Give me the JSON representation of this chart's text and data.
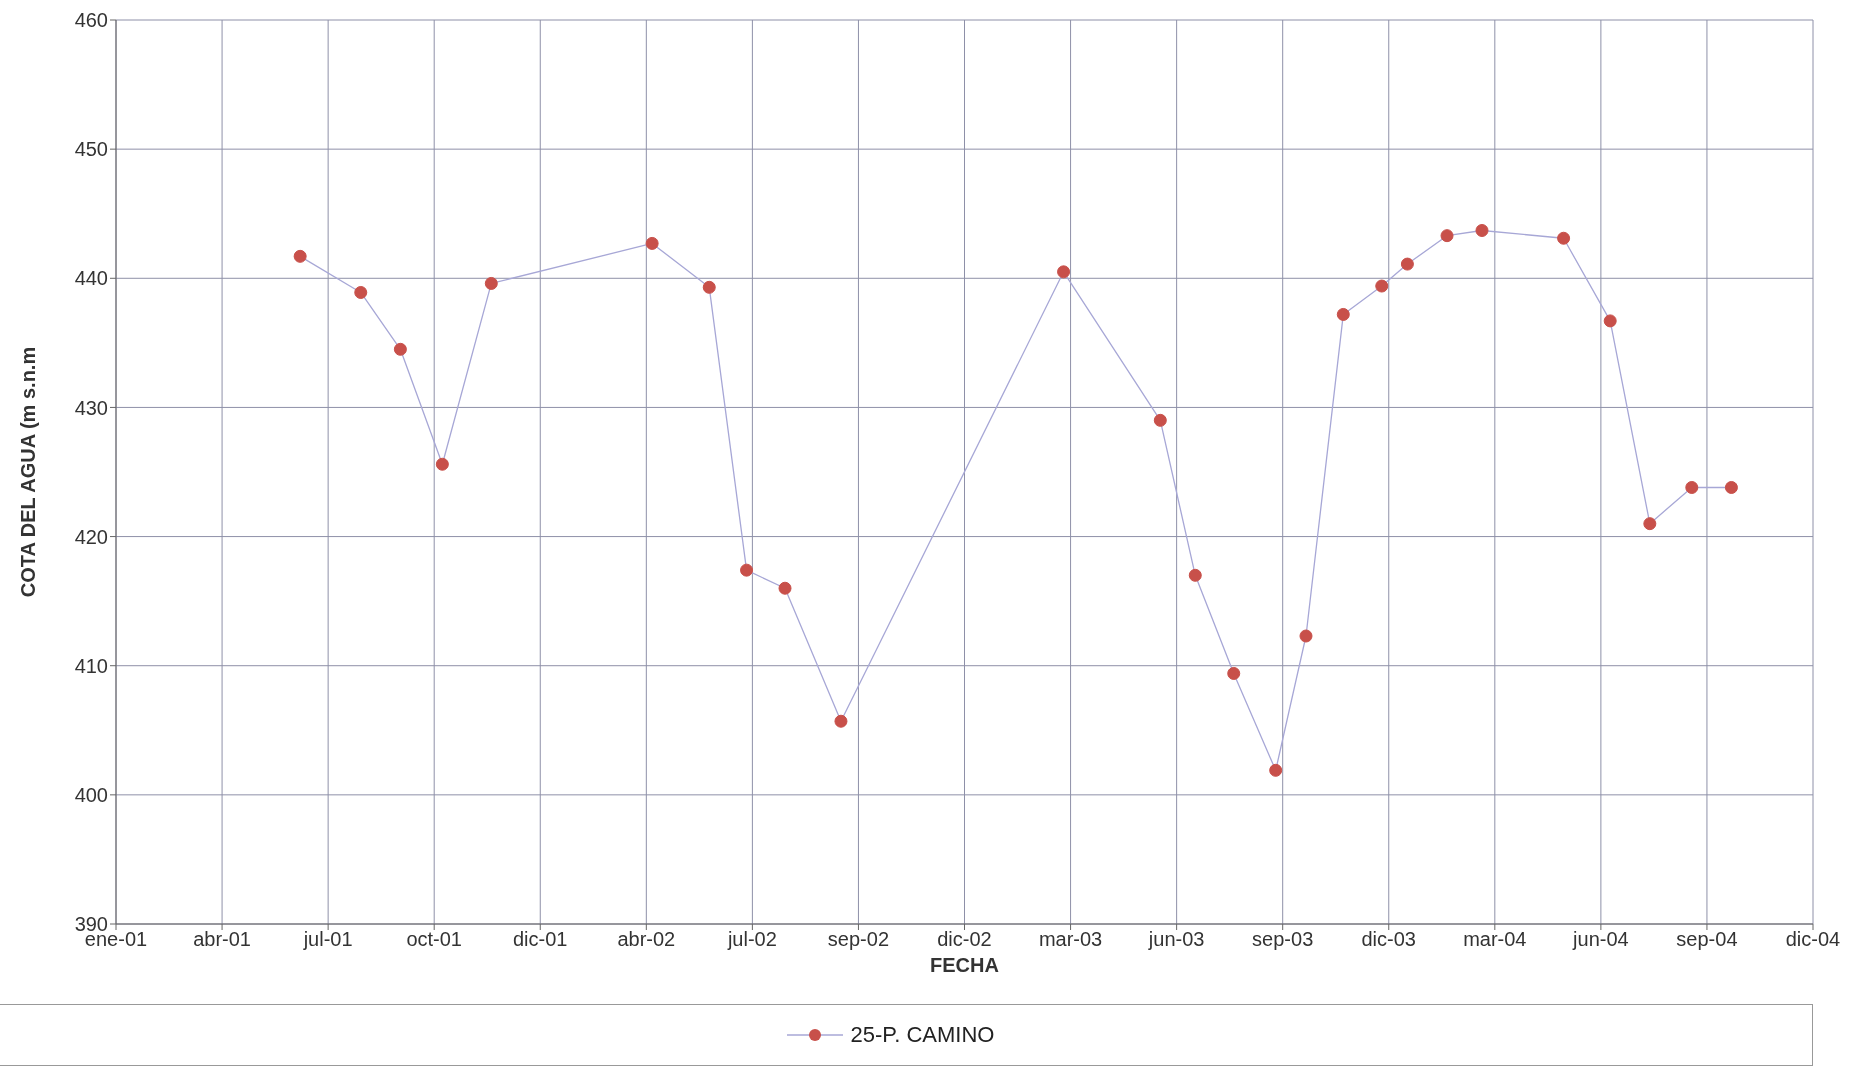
{
  "chart_data": {
    "type": "line",
    "xlabel": "FECHA",
    "ylabel": "COTA DEL AGUA (m s.n.m",
    "xlim": [
      "2001-01-01",
      "2004-12-27"
    ],
    "xticks": [
      {
        "value": "2001-01-01",
        "label": "ene-01"
      },
      {
        "value": "2001-04-02",
        "label": "abr-01"
      },
      {
        "value": "2001-07-02",
        "label": "jul-01"
      },
      {
        "value": "2001-10-01",
        "label": "oct-01"
      },
      {
        "value": "2001-12-31",
        "label": "dic-01"
      },
      {
        "value": "2002-04-01",
        "label": "abr-02"
      },
      {
        "value": "2002-07-01",
        "label": "jul-02"
      },
      {
        "value": "2002-09-30",
        "label": "sep-02"
      },
      {
        "value": "2002-12-30",
        "label": "dic-02"
      },
      {
        "value": "2003-03-31",
        "label": "mar-03"
      },
      {
        "value": "2003-06-30",
        "label": "jun-03"
      },
      {
        "value": "2003-09-29",
        "label": "sep-03"
      },
      {
        "value": "2003-12-29",
        "label": "dic-03"
      },
      {
        "value": "2004-03-29",
        "label": "mar-04"
      },
      {
        "value": "2004-06-28",
        "label": "jun-04"
      },
      {
        "value": "2004-09-27",
        "label": "sep-04"
      },
      {
        "value": "2004-12-27",
        "label": "dic-04"
      }
    ],
    "ylim": [
      390,
      460
    ],
    "yticks": [
      390,
      400,
      410,
      420,
      430,
      440,
      450,
      460
    ],
    "grid": true,
    "legend": "bottom",
    "marker": "circle",
    "line_style": "solid",
    "x": [
      "2001-06-08",
      "2001-07-30",
      "2001-09-02",
      "2001-10-08",
      "2001-11-19",
      "2002-04-06",
      "2002-05-25",
      "2002-06-26",
      "2002-07-29",
      "2002-09-15",
      "2003-03-25",
      "2003-06-16",
      "2003-07-16",
      "2003-08-18",
      "2003-09-23",
      "2003-10-19",
      "2003-11-20",
      "2003-12-23",
      "2004-01-14",
      "2004-02-17",
      "2004-03-18",
      "2004-05-27",
      "2004-07-06",
      "2004-08-09",
      "2004-09-14",
      "2004-10-18"
    ],
    "series": [
      {
        "name": "25-P. CAMINO",
        "color": "#c8504a",
        "values": [
          441.7,
          438.9,
          434.5,
          425.6,
          439.6,
          442.7,
          439.3,
          417.4,
          416.0,
          405.7,
          440.5,
          429.0,
          417.0,
          409.4,
          401.9,
          412.3,
          437.2,
          439.4,
          441.1,
          443.3,
          443.7,
          443.1,
          436.7,
          421.0,
          423.8,
          423.8
        ]
      }
    ]
  }
}
